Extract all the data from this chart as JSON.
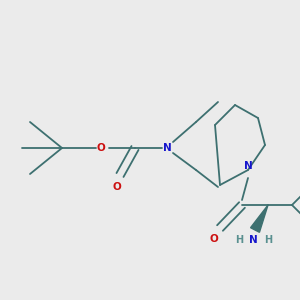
{
  "bg_color": "#ebebeb",
  "bond_color": "#3d7070",
  "N_color": "#1515cc",
  "O_color": "#cc1010",
  "H_color": "#5a9090",
  "lw": 1.3,
  "fs": 7.5,
  "xlim": [
    0,
    300
  ],
  "ylim": [
    0,
    300
  ]
}
